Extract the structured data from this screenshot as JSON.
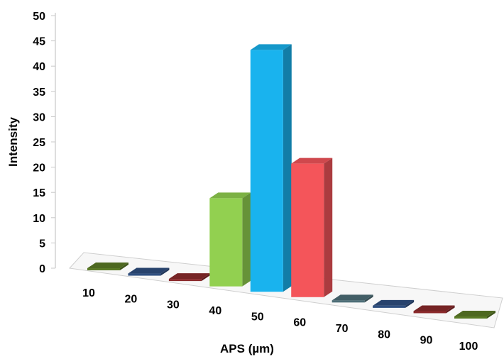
{
  "chart_data": {
    "type": "bar",
    "title": "",
    "xlabel": "APS (µm)",
    "ylabel": "Intensity",
    "categories": [
      "10",
      "20",
      "30",
      "40",
      "50",
      "60",
      "70",
      "80",
      "90",
      "100"
    ],
    "values": [
      0,
      0,
      0,
      17.5,
      48,
      26.5,
      0,
      0,
      0,
      0
    ],
    "ylim": [
      0,
      50
    ],
    "yticks": [
      "0",
      "5",
      "10",
      "15",
      "20",
      "25",
      "30",
      "35",
      "40",
      "45",
      "50"
    ],
    "colors": [
      "#5a7a26",
      "#2f4f80",
      "#8b2a2c",
      "#92d050",
      "#19b3ee",
      "#f4555a",
      "#4e6f78",
      "#2f4f80",
      "#8b2a2c",
      "#5a7a26"
    ],
    "grid": false,
    "legend": "none",
    "style": "3d-columns"
  }
}
